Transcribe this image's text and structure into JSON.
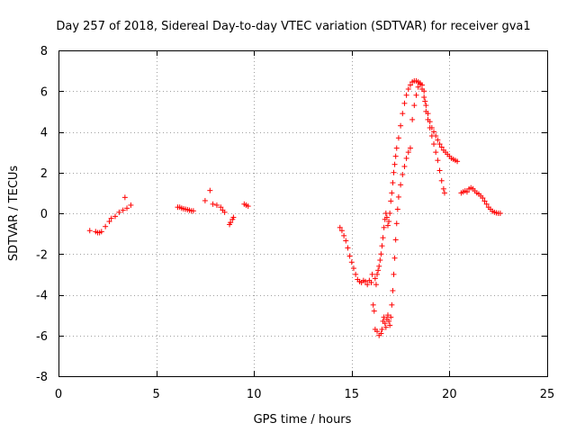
{
  "chart_data": {
    "type": "scatter",
    "title": "Day 257 of 2018, Sidereal Day-to-day VTEC variation (SDTVAR) for receiver gva1",
    "xlabel": "GPS time / hours",
    "ylabel": "SDTVAR / TECUs",
    "xlim": [
      0,
      25
    ],
    "ylim": [
      -8,
      8
    ],
    "xticks": [
      0,
      5,
      10,
      15,
      20,
      25
    ],
    "yticks": [
      -8,
      -6,
      -4,
      -2,
      0,
      2,
      4,
      6,
      8
    ],
    "grid": true,
    "marker": "+",
    "color": "#ff0000",
    "series": [
      {
        "name": "gva1",
        "points": [
          [
            1.6,
            -0.85
          ],
          [
            1.9,
            -0.9
          ],
          [
            2.0,
            -0.95
          ],
          [
            2.1,
            -0.95
          ],
          [
            2.2,
            -0.9
          ],
          [
            2.4,
            -0.65
          ],
          [
            2.6,
            -0.4
          ],
          [
            2.7,
            -0.25
          ],
          [
            2.9,
            -0.15
          ],
          [
            3.1,
            0.05
          ],
          [
            3.3,
            0.15
          ],
          [
            3.4,
            0.78
          ],
          [
            3.5,
            0.25
          ],
          [
            3.7,
            0.4
          ],
          [
            6.1,
            0.3
          ],
          [
            6.2,
            0.3
          ],
          [
            6.3,
            0.25
          ],
          [
            6.4,
            0.22
          ],
          [
            6.5,
            0.2
          ],
          [
            6.6,
            0.18
          ],
          [
            6.7,
            0.15
          ],
          [
            6.8,
            0.12
          ],
          [
            6.9,
            0.12
          ],
          [
            7.5,
            0.62
          ],
          [
            7.75,
            1.12
          ],
          [
            7.9,
            0.45
          ],
          [
            8.1,
            0.4
          ],
          [
            8.3,
            0.3
          ],
          [
            8.4,
            0.15
          ],
          [
            8.5,
            0.05
          ],
          [
            8.75,
            -0.55
          ],
          [
            8.8,
            -0.45
          ],
          [
            8.9,
            -0.3
          ],
          [
            8.95,
            -0.2
          ],
          [
            9.5,
            0.45
          ],
          [
            9.6,
            0.4
          ],
          [
            9.7,
            0.35
          ],
          [
            14.4,
            -0.7
          ],
          [
            14.5,
            -0.85
          ],
          [
            14.6,
            -1.1
          ],
          [
            14.7,
            -1.35
          ],
          [
            14.8,
            -1.7
          ],
          [
            14.9,
            -2.1
          ],
          [
            15.0,
            -2.4
          ],
          [
            15.1,
            -2.7
          ],
          [
            15.2,
            -3.0
          ],
          [
            15.3,
            -3.25
          ],
          [
            15.4,
            -3.35
          ],
          [
            15.5,
            -3.4
          ],
          [
            15.6,
            -3.3
          ],
          [
            15.7,
            -3.35
          ],
          [
            15.8,
            -3.5
          ],
          [
            15.9,
            -3.3
          ],
          [
            16.0,
            -3.4
          ],
          [
            16.05,
            -3.0
          ],
          [
            16.1,
            -4.5
          ],
          [
            16.15,
            -4.8
          ],
          [
            16.2,
            -3.2
          ],
          [
            16.25,
            -3.5
          ],
          [
            16.3,
            -3.0
          ],
          [
            16.35,
            -2.8
          ],
          [
            16.4,
            -2.6
          ],
          [
            16.45,
            -2.3
          ],
          [
            16.5,
            -2.0
          ],
          [
            16.55,
            -1.6
          ],
          [
            16.6,
            -1.2
          ],
          [
            16.65,
            -0.7
          ],
          [
            16.7,
            -0.3
          ],
          [
            16.75,
            0.0
          ],
          [
            16.8,
            -0.2
          ],
          [
            16.85,
            -0.6
          ],
          [
            16.9,
            -0.4
          ],
          [
            16.95,
            0.0
          ],
          [
            17.0,
            0.6
          ],
          [
            17.05,
            1.0
          ],
          [
            17.1,
            1.5
          ],
          [
            17.15,
            2.0
          ],
          [
            17.2,
            2.4
          ],
          [
            17.25,
            2.8
          ],
          [
            17.3,
            3.2
          ],
          [
            17.4,
            3.7
          ],
          [
            17.5,
            4.3
          ],
          [
            17.6,
            4.9
          ],
          [
            17.7,
            5.4
          ],
          [
            17.8,
            5.8
          ],
          [
            17.9,
            6.1
          ],
          [
            18.0,
            6.3
          ],
          [
            18.1,
            6.45
          ],
          [
            18.2,
            6.5
          ],
          [
            18.3,
            6.5
          ],
          [
            18.4,
            6.45
          ],
          [
            18.5,
            6.35
          ],
          [
            18.6,
            6.1
          ],
          [
            18.7,
            5.7
          ],
          [
            18.8,
            5.3
          ],
          [
            18.9,
            4.9
          ],
          [
            19.0,
            4.5
          ],
          [
            19.1,
            4.2
          ],
          [
            19.2,
            4.0
          ],
          [
            19.3,
            3.8
          ],
          [
            19.4,
            3.6
          ],
          [
            19.5,
            3.4
          ],
          [
            19.6,
            3.25
          ],
          [
            19.7,
            3.1
          ],
          [
            19.8,
            3.0
          ],
          [
            19.9,
            2.9
          ],
          [
            20.0,
            2.8
          ],
          [
            20.1,
            2.7
          ],
          [
            20.2,
            2.65
          ],
          [
            20.3,
            2.6
          ],
          [
            20.4,
            2.55
          ],
          [
            16.2,
            -5.7
          ],
          [
            16.3,
            -5.8
          ],
          [
            16.4,
            -6.0
          ],
          [
            16.5,
            -5.9
          ],
          [
            16.55,
            -5.7
          ],
          [
            16.6,
            -5.3
          ],
          [
            16.65,
            -5.1
          ],
          [
            16.7,
            -5.4
          ],
          [
            16.75,
            -5.6
          ],
          [
            16.8,
            -5.2
          ],
          [
            16.85,
            -5.0
          ],
          [
            16.9,
            -5.3
          ],
          [
            16.95,
            -5.5
          ],
          [
            17.0,
            -5.1
          ],
          [
            17.05,
            -4.5
          ],
          [
            17.1,
            -3.8
          ],
          [
            17.15,
            -3.0
          ],
          [
            17.2,
            -2.2
          ],
          [
            17.25,
            -1.3
          ],
          [
            17.3,
            -0.5
          ],
          [
            17.35,
            0.2
          ],
          [
            17.4,
            0.8
          ],
          [
            17.5,
            1.4
          ],
          [
            17.6,
            1.9
          ],
          [
            17.7,
            2.3
          ],
          [
            17.8,
            2.7
          ],
          [
            17.9,
            3.0
          ],
          [
            18.0,
            3.2
          ],
          [
            18.1,
            4.6
          ],
          [
            18.2,
            5.3
          ],
          [
            18.3,
            5.8
          ],
          [
            18.4,
            6.2
          ],
          [
            18.5,
            6.4
          ],
          [
            18.6,
            6.3
          ],
          [
            18.7,
            6.0
          ],
          [
            18.75,
            5.5
          ],
          [
            18.8,
            5.0
          ],
          [
            18.9,
            4.6
          ],
          [
            19.0,
            4.2
          ],
          [
            19.1,
            3.8
          ],
          [
            19.2,
            3.4
          ],
          [
            19.3,
            3.0
          ],
          [
            19.4,
            2.6
          ],
          [
            19.5,
            2.1
          ],
          [
            19.6,
            1.6
          ],
          [
            19.7,
            1.2
          ],
          [
            19.75,
            1.0
          ],
          [
            20.6,
            1.0
          ],
          [
            20.7,
            1.05
          ],
          [
            20.8,
            1.1
          ],
          [
            20.9,
            1.05
          ],
          [
            21.0,
            1.2
          ],
          [
            21.1,
            1.25
          ],
          [
            21.2,
            1.2
          ],
          [
            21.3,
            1.1
          ],
          [
            21.4,
            1.0
          ],
          [
            21.5,
            0.95
          ],
          [
            21.6,
            0.85
          ],
          [
            21.7,
            0.75
          ],
          [
            21.8,
            0.6
          ],
          [
            21.9,
            0.45
          ],
          [
            22.0,
            0.3
          ],
          [
            22.1,
            0.2
          ],
          [
            22.2,
            0.1
          ],
          [
            22.3,
            0.05
          ],
          [
            22.4,
            0.02
          ],
          [
            22.5,
            0.0
          ],
          [
            22.6,
            0.0
          ]
        ]
      }
    ]
  }
}
